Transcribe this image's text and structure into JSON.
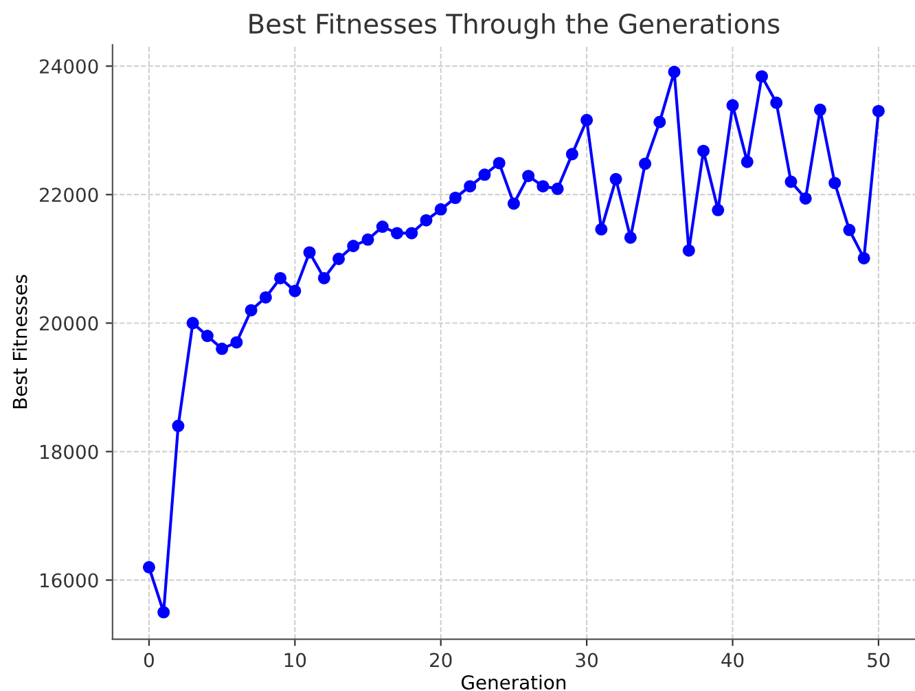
{
  "chart_data": {
    "type": "line",
    "title": "Best Fitnesses Through the Generations",
    "xlabel": "Generation",
    "ylabel": "Best Fitnesses",
    "x": [
      0,
      1,
      2,
      3,
      4,
      5,
      6,
      7,
      8,
      9,
      10,
      11,
      12,
      13,
      14,
      15,
      16,
      17,
      18,
      19,
      20,
      21,
      22,
      23,
      24,
      25,
      26,
      27,
      28,
      29,
      30,
      31,
      32,
      33,
      34,
      35,
      36,
      37,
      38,
      39,
      40,
      41,
      42,
      43,
      44,
      45,
      46,
      47,
      48,
      49,
      50
    ],
    "series": [
      {
        "color": "#0000ff",
        "values": [
          16200,
          15500,
          18400,
          20000,
          19800,
          19600,
          19700,
          20200,
          20400,
          20700,
          20500,
          21100,
          20700,
          21000,
          21200,
          21300,
          21500,
          21400,
          21400,
          21600,
          21770,
          21950,
          22130,
          22310,
          22490,
          21860,
          22290,
          22130,
          22090,
          22630,
          23160,
          21460,
          22240,
          21330,
          22480,
          23130,
          23910,
          21130,
          22680,
          21760,
          23390,
          22510,
          23840,
          23430,
          22200,
          21940,
          23320,
          22180,
          21450,
          21010,
          23300
        ]
      }
    ],
    "xlim": [
      -2.5,
      52.5
    ],
    "ylim": [
      15080,
      24330
    ],
    "xticks": [
      0,
      10,
      20,
      30,
      40,
      50
    ],
    "yticks": [
      16000,
      18000,
      20000,
      22000,
      24000
    ],
    "grid": true,
    "marker": "circle",
    "line_style": "solid"
  }
}
